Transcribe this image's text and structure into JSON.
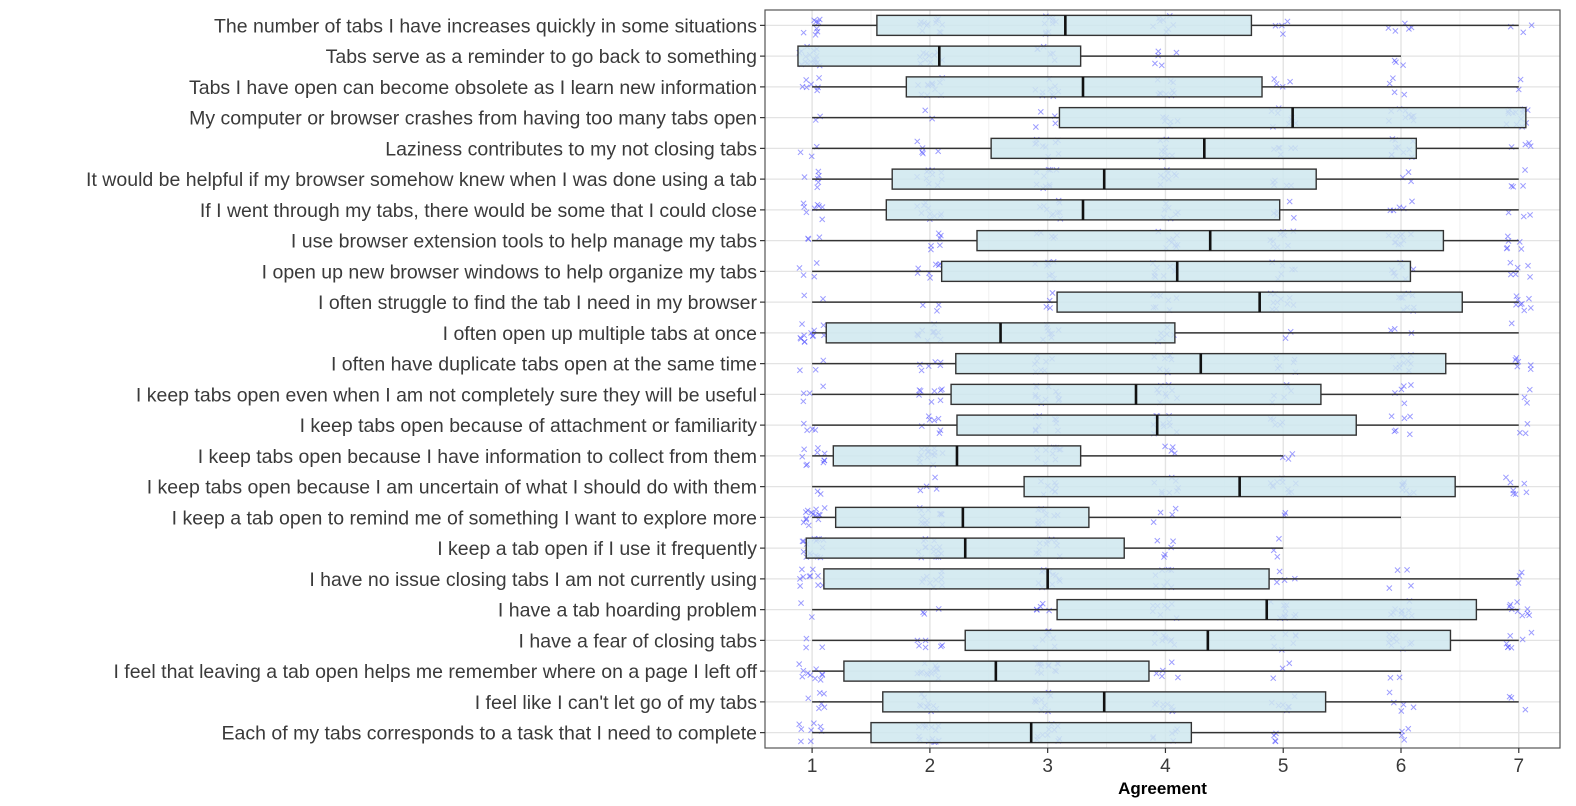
{
  "chart_data": {
    "type": "boxplot",
    "xlabel": "Agreement",
    "xlim": [
      0.6,
      7.35
    ],
    "x_ticks": [
      1,
      2,
      3,
      4,
      5,
      6,
      7
    ],
    "grid": true,
    "colors": {
      "box_fill": "#cfe8ef",
      "box_stroke": "#333333",
      "jitter": "#4a4aff",
      "grid": "#e3e3e3",
      "panel_border": "#555555"
    },
    "categories": [
      "The number of tabs I have increases quickly in some situations",
      "Tabs serve as a reminder to go back to something",
      "Tabs I have open can become obsolete as I learn new information",
      "My computer or browser crashes from having too many tabs open",
      "Laziness contributes to my not closing tabs",
      "It would be helpful if my browser somehow knew when I was done using a tab",
      "If I went through my tabs, there would be some that I could close",
      "I use browser extension tools to help manage my tabs",
      "I open up new browser windows to help organize my tabs",
      "I often struggle to find the tab I need in my browser",
      "I often open up multiple tabs at once",
      "I often have duplicate tabs open at the same time",
      "I keep tabs open even when I am not completely sure they will be useful",
      "I keep tabs open because of attachment or familiarity",
      "I keep tabs open because I have information to collect from them",
      "I keep tabs open because I am uncertain of what I should do with them",
      "I keep a tab open to remind me of something I want to explore more",
      "I keep a tab open if I use it frequently",
      "I have no issue closing tabs I am not currently using",
      "I have a tab hoarding problem",
      "I have a fear of closing tabs",
      "I feel that leaving a tab open helps me remember where on a page I left off",
      "I feel like I can't let go of my tabs",
      "Each of my tabs corresponds to a task that I need to complete"
    ],
    "boxes": [
      {
        "whisker_low": 1.0,
        "q1": 1.55,
        "median": 3.15,
        "q3": 4.73,
        "whisker_high": 7.0,
        "counts": [
          8,
          12,
          10,
          8,
          4,
          5,
          3
        ]
      },
      {
        "whisker_low": 0.88,
        "q1": 0.88,
        "median": 2.08,
        "q3": 3.28,
        "whisker_high": 6.0,
        "counts": [
          18,
          10,
          6,
          5,
          0,
          3,
          0
        ]
      },
      {
        "whisker_low": 1.0,
        "q1": 1.8,
        "median": 3.3,
        "q3": 4.82,
        "whisker_high": 7.0,
        "counts": [
          7,
          12,
          9,
          10,
          4,
          4,
          2
        ]
      },
      {
        "whisker_low": 1.0,
        "q1": 3.1,
        "median": 5.08,
        "q3": 7.06,
        "whisker_high": 7.06,
        "counts": [
          2,
          2,
          4,
          6,
          8,
          10,
          14
        ]
      },
      {
        "whisker_low": 1.0,
        "q1": 2.52,
        "median": 4.33,
        "q3": 6.13,
        "whisker_high": 7.0,
        "counts": [
          3,
          5,
          9,
          8,
          6,
          10,
          4
        ]
      },
      {
        "whisker_low": 1.0,
        "q1": 1.68,
        "median": 3.48,
        "q3": 5.28,
        "whisker_high": 7.0,
        "counts": [
          6,
          10,
          10,
          8,
          5,
          3,
          4
        ]
      },
      {
        "whisker_low": 1.0,
        "q1": 1.63,
        "median": 3.3,
        "q3": 4.97,
        "whisker_high": 7.0,
        "counts": [
          8,
          10,
          10,
          7,
          5,
          5,
          3
        ]
      },
      {
        "whisker_low": 1.0,
        "q1": 2.4,
        "median": 4.38,
        "q3": 6.36,
        "whisker_high": 7.0,
        "counts": [
          3,
          6,
          5,
          9,
          9,
          10,
          6
        ]
      },
      {
        "whisker_low": 1.0,
        "q1": 2.1,
        "median": 4.1,
        "q3": 6.08,
        "whisker_high": 7.0,
        "counts": [
          4,
          7,
          8,
          9,
          6,
          8,
          6
        ]
      },
      {
        "whisker_low": 1.0,
        "q1": 3.08,
        "median": 4.8,
        "q3": 6.52,
        "whisker_high": 7.0,
        "counts": [
          2,
          3,
          4,
          8,
          10,
          10,
          8
        ]
      },
      {
        "whisker_low": 1.0,
        "q1": 1.12,
        "median": 2.6,
        "q3": 4.08,
        "whisker_high": 7.0,
        "counts": [
          12,
          12,
          8,
          6,
          2,
          3,
          1
        ]
      },
      {
        "whisker_low": 1.0,
        "q1": 2.22,
        "median": 4.3,
        "q3": 6.38,
        "whisker_high": 7.0,
        "counts": [
          3,
          6,
          8,
          8,
          6,
          10,
          6
        ]
      },
      {
        "whisker_low": 1.0,
        "q1": 2.18,
        "median": 3.75,
        "q3": 5.32,
        "whisker_high": 7.0,
        "counts": [
          4,
          8,
          12,
          9,
          6,
          5,
          3
        ]
      },
      {
        "whisker_low": 1.0,
        "q1": 2.23,
        "median": 3.93,
        "q3": 5.62,
        "whisker_high": 7.0,
        "counts": [
          4,
          7,
          10,
          10,
          5,
          6,
          3
        ]
      },
      {
        "whisker_low": 1.0,
        "q1": 1.18,
        "median": 2.23,
        "q3": 3.28,
        "whisker_high": 5.0,
        "counts": [
          10,
          14,
          10,
          4,
          3,
          0,
          0
        ]
      },
      {
        "whisker_low": 1.0,
        "q1": 2.8,
        "median": 4.63,
        "q3": 6.46,
        "whisker_high": 7.0,
        "counts": [
          2,
          4,
          8,
          8,
          10,
          9,
          7
        ]
      },
      {
        "whisker_low": 1.0,
        "q1": 1.2,
        "median": 2.28,
        "q3": 3.35,
        "whisker_high": 6.0,
        "counts": [
          14,
          14,
          10,
          4,
          2,
          0,
          0
        ]
      },
      {
        "whisker_low": 0.95,
        "q1": 0.95,
        "median": 2.3,
        "q3": 3.65,
        "whisker_high": 5.0,
        "counts": [
          16,
          14,
          10,
          5,
          3,
          0,
          0
        ]
      },
      {
        "whisker_low": 1.1,
        "q1": 1.1,
        "median": 3.0,
        "q3": 4.88,
        "whisker_high": 7.0,
        "counts": [
          10,
          10,
          10,
          8,
          4,
          4,
          3
        ]
      },
      {
        "whisker_low": 1.0,
        "q1": 3.08,
        "median": 4.86,
        "q3": 6.64,
        "whisker_high": 7.0,
        "counts": [
          2,
          3,
          5,
          8,
          10,
          10,
          9
        ]
      },
      {
        "whisker_low": 1.0,
        "q1": 2.3,
        "median": 4.36,
        "q3": 6.42,
        "whisker_high": 7.0,
        "counts": [
          3,
          6,
          7,
          9,
          7,
          10,
          7
        ]
      },
      {
        "whisker_low": 1.0,
        "q1": 1.27,
        "median": 2.56,
        "q3": 3.86,
        "whisker_high": 6.0,
        "counts": [
          10,
          14,
          12,
          5,
          3,
          2,
          0
        ]
      },
      {
        "whisker_low": 1.0,
        "q1": 1.6,
        "median": 3.48,
        "q3": 5.36,
        "whisker_high": 7.0,
        "counts": [
          6,
          10,
          9,
          8,
          7,
          5,
          3
        ]
      },
      {
        "whisker_low": 1.0,
        "q1": 1.5,
        "median": 2.86,
        "q3": 4.22,
        "whisker_high": 6.0,
        "counts": [
          8,
          14,
          10,
          6,
          4,
          4,
          0
        ]
      }
    ]
  }
}
